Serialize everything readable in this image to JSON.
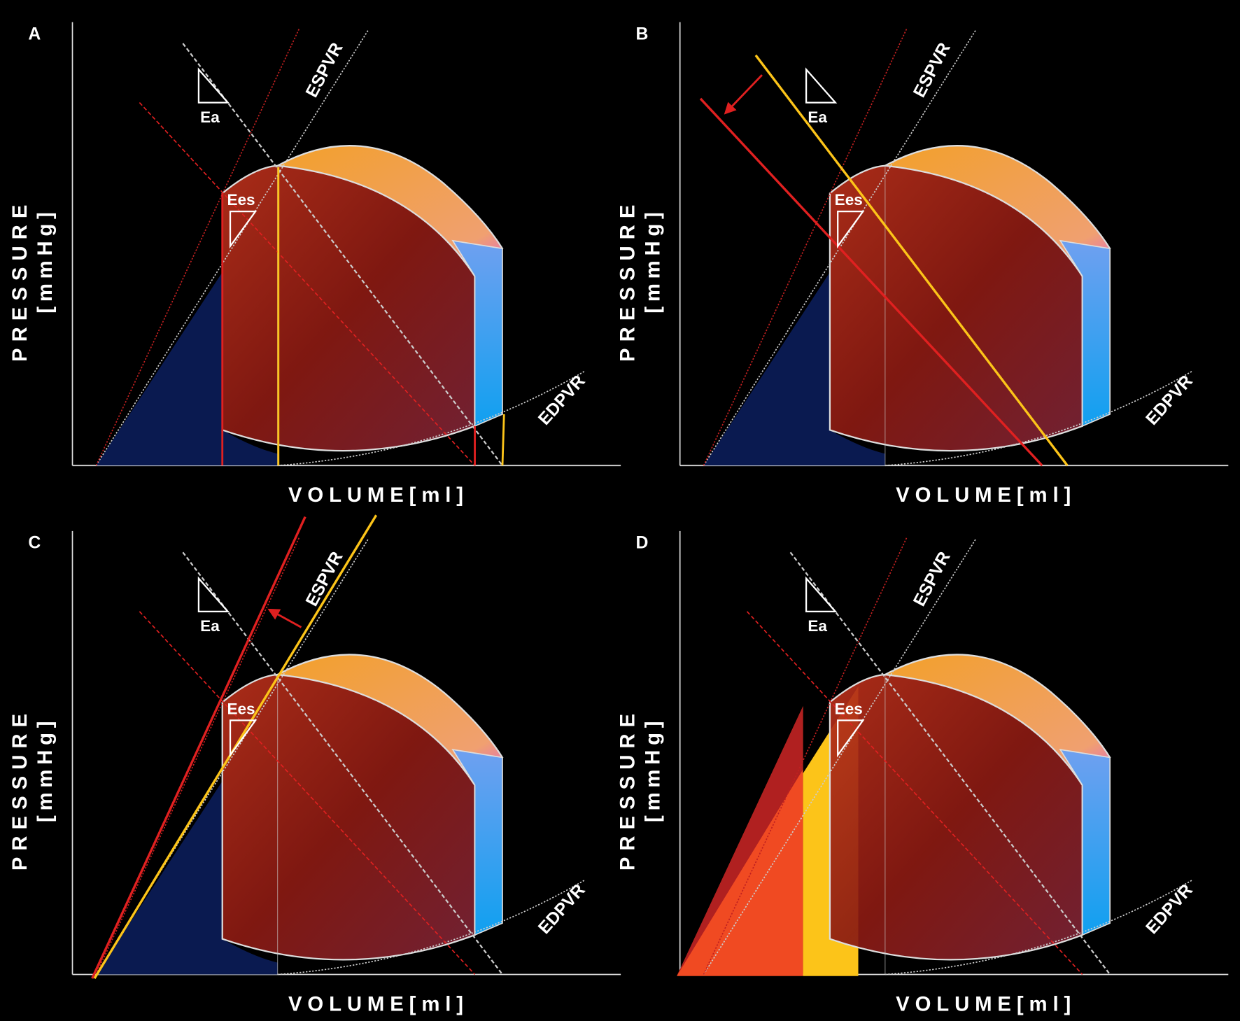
{
  "panels": [
    {
      "label": "A",
      "pressure": "PRESSURE",
      "pressure_unit": "[mmHg]",
      "volume": "VOLUME[ml]",
      "espvr": "ESPVR",
      "edpvr": "EDPVR",
      "ea": "Ea",
      "ees": "Ees"
    },
    {
      "label": "B",
      "pressure": "PRESSURE",
      "pressure_unit": "[mmHg]",
      "volume": "VOLUME[ml]",
      "espvr": "ESPVR",
      "edpvr": "EDPVR",
      "ea": "Ea",
      "ees": "Ees"
    },
    {
      "label": "C",
      "pressure": "PRESSURE",
      "pressure_unit": "[mmHg]",
      "volume": "VOLUME[ml]",
      "espvr": "ESPVR",
      "edpvr": "EDPVR",
      "ea": "Ea",
      "ees": "Ees"
    },
    {
      "label": "D",
      "pressure": "PRESSURE",
      "pressure_unit": "[mmHg]",
      "volume": "VOLUME[ml]",
      "espvr": "ESPVR",
      "edpvr": "EDPVR",
      "ea": "Ea",
      "ees": "Ees"
    }
  ]
}
